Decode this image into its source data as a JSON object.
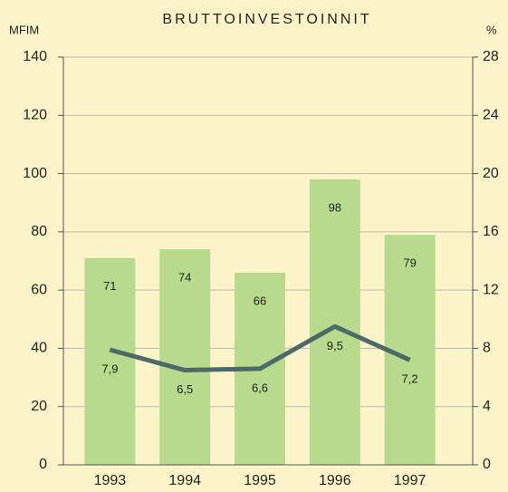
{
  "chart_data": {
    "type": "bar",
    "title": "BRUTTOINVESTOINNIT",
    "ylabel": "MFIM",
    "y2label": "%",
    "categories": [
      "1993",
      "1994",
      "1995",
      "1996",
      "1997"
    ],
    "series": [
      {
        "type": "bar",
        "color": "#b8da8c",
        "values": [
          71,
          74,
          66,
          98,
          79
        ]
      },
      {
        "type": "line",
        "axis": "y2",
        "color": "#4b6a68",
        "values": [
          7.9,
          6.5,
          6.6,
          9.5,
          7.2
        ],
        "value_labels": [
          "7,9",
          "6,5",
          "6,6",
          "9,5",
          "7,2"
        ]
      }
    ],
    "ylim": [
      0,
      140
    ],
    "yticks": [
      0,
      20,
      40,
      60,
      80,
      100,
      120,
      140
    ],
    "y2lim": [
      0,
      28
    ],
    "y2ticks": [
      0,
      4,
      8,
      12,
      16,
      20,
      24,
      28
    ],
    "grid": true
  }
}
